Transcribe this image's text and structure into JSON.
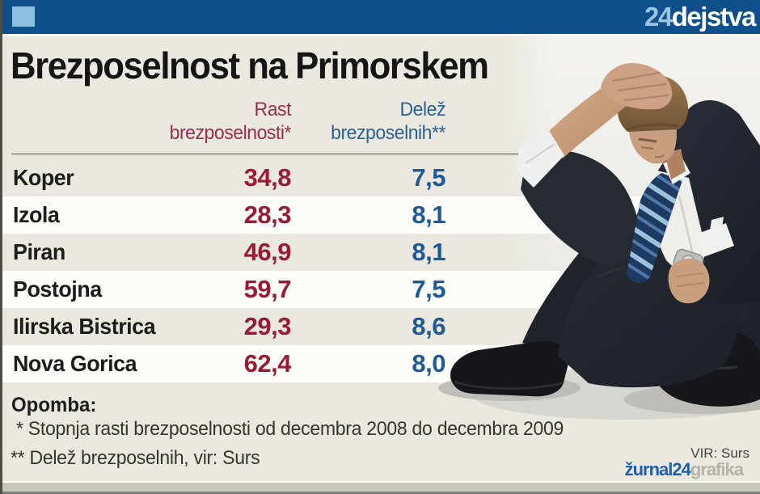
{
  "brand": {
    "logo_prefix": "24",
    "logo_suffix": "dejstva"
  },
  "title": "Brezposelnost na Primorskem",
  "table": {
    "col1": {
      "line1": "Rast",
      "line2": "brezposelnosti*"
    },
    "col2": {
      "line1": "Delež",
      "line2": "brezposelnih**"
    },
    "rows": [
      {
        "name": "Koper",
        "rast": "34,8",
        "delez": "7,5"
      },
      {
        "name": "Izola",
        "rast": "28,3",
        "delez": "8,1"
      },
      {
        "name": "Piran",
        "rast": "46,9",
        "delez": "8,1"
      },
      {
        "name": "Postojna",
        "rast": "59,7",
        "delez": "7,5"
      },
      {
        "name": "Ilirska Bistrica",
        "rast": "29,3",
        "delez": "8,6"
      },
      {
        "name": "Nova Gorica",
        "rast": "62,4",
        "delez": "8,0"
      }
    ]
  },
  "notes": {
    "heading": "Opomba:",
    "line1": "* Stopnja rasti brezposelnosti od decembra 2008 do decembra 2009",
    "line2": "** Delež brezposelnih, vir: Surs"
  },
  "source": "VIR: Surs",
  "footer_brand": {
    "blue": "žurnal24",
    "gray": "grafika"
  },
  "photo": {
    "alt": "Dejected businessman in a dark suit sitting on the floor, hand on his head, striped tie, looking down"
  },
  "colors": {
    "bar_blue": "#0f4f8c",
    "logo_light_blue": "#9ac4e2",
    "accent_red": "#9b1b36",
    "accent_blue": "#1d5a99",
    "background_beige": "#eae8df",
    "row_white": "#fcfcf9",
    "rule_gray": "#b2b1a8"
  },
  "chart_data": {
    "type": "table",
    "title": "Brezposelnost na Primorskem",
    "categories": [
      "Koper",
      "Izola",
      "Piran",
      "Postojna",
      "Ilirska Bistrica",
      "Nova Gorica"
    ],
    "series": [
      {
        "name": "Rast brezposelnosti (%)",
        "values": [
          34.8,
          28.3,
          46.9,
          59.7,
          29.3,
          62.4
        ]
      },
      {
        "name": "Delež brezposelnih (%)",
        "values": [
          7.5,
          8.1,
          8.1,
          7.5,
          8.6,
          8.0
        ]
      }
    ],
    "notes": [
      "Stopnja rasti brezposelnosti od decembra 2008 do decembra 2009",
      "Delež brezposelnih, vir: Surs"
    ],
    "source": "Surs"
  }
}
